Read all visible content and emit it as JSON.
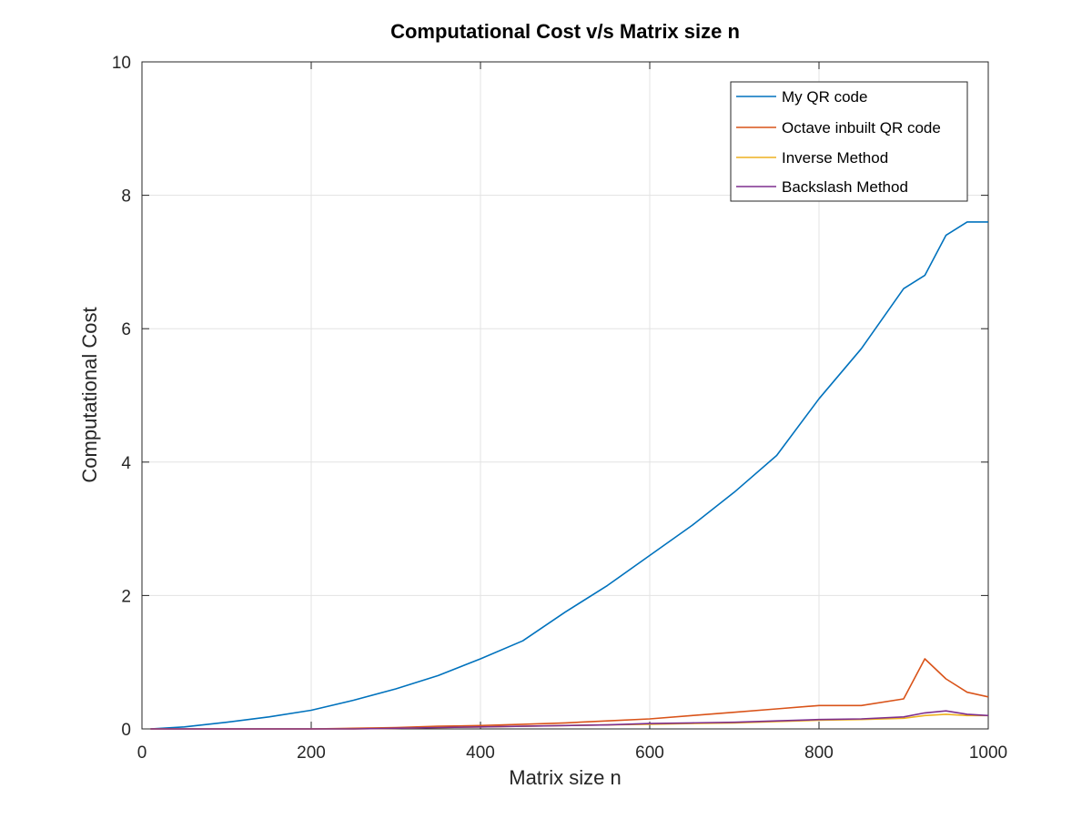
{
  "chart_data": {
    "type": "line",
    "title": "Computational Cost v/s Matrix size n",
    "xlabel": "Matrix size n",
    "ylabel": "Computational Cost",
    "xlim": [
      0,
      1000
    ],
    "ylim": [
      0,
      10
    ],
    "xticks": [
      0,
      200,
      400,
      600,
      800,
      1000
    ],
    "yticks": [
      0,
      2,
      4,
      6,
      8,
      10
    ],
    "grid": true,
    "legend_position": "top-right",
    "x": [
      10,
      50,
      100,
      150,
      200,
      250,
      300,
      350,
      400,
      450,
      500,
      550,
      600,
      650,
      700,
      750,
      800,
      850,
      900,
      925,
      950,
      975,
      1000
    ],
    "series": [
      {
        "name": "My QR code",
        "color": "#0072BD",
        "values": [
          0.0,
          0.03,
          0.1,
          0.18,
          0.28,
          0.43,
          0.6,
          0.8,
          1.05,
          1.32,
          1.75,
          2.15,
          2.6,
          3.05,
          3.55,
          4.1,
          4.95,
          5.7,
          6.6,
          6.8,
          7.4,
          7.6,
          7.6
        ]
      },
      {
        "name": "Octave inbuilt QR code",
        "color": "#D95319",
        "values": [
          0.0,
          0.0,
          0.0,
          0.0,
          0.0,
          0.01,
          0.02,
          0.04,
          0.05,
          0.07,
          0.09,
          0.12,
          0.15,
          0.2,
          0.25,
          0.3,
          0.35,
          0.35,
          0.45,
          1.05,
          0.75,
          0.55,
          0.48
        ]
      },
      {
        "name": "Inverse Method",
        "color": "#EDB120",
        "values": [
          0.0,
          0.0,
          0.0,
          0.0,
          0.0,
          0.0,
          0.01,
          0.02,
          0.03,
          0.04,
          0.05,
          0.06,
          0.07,
          0.08,
          0.09,
          0.11,
          0.13,
          0.14,
          0.16,
          0.2,
          0.22,
          0.2,
          0.2
        ]
      },
      {
        "name": "Backslash Method",
        "color": "#7E2F8E",
        "values": [
          0.0,
          0.0,
          0.0,
          0.0,
          0.0,
          0.0,
          0.01,
          0.02,
          0.03,
          0.04,
          0.05,
          0.06,
          0.08,
          0.09,
          0.1,
          0.12,
          0.14,
          0.15,
          0.18,
          0.24,
          0.27,
          0.22,
          0.2
        ]
      }
    ]
  }
}
